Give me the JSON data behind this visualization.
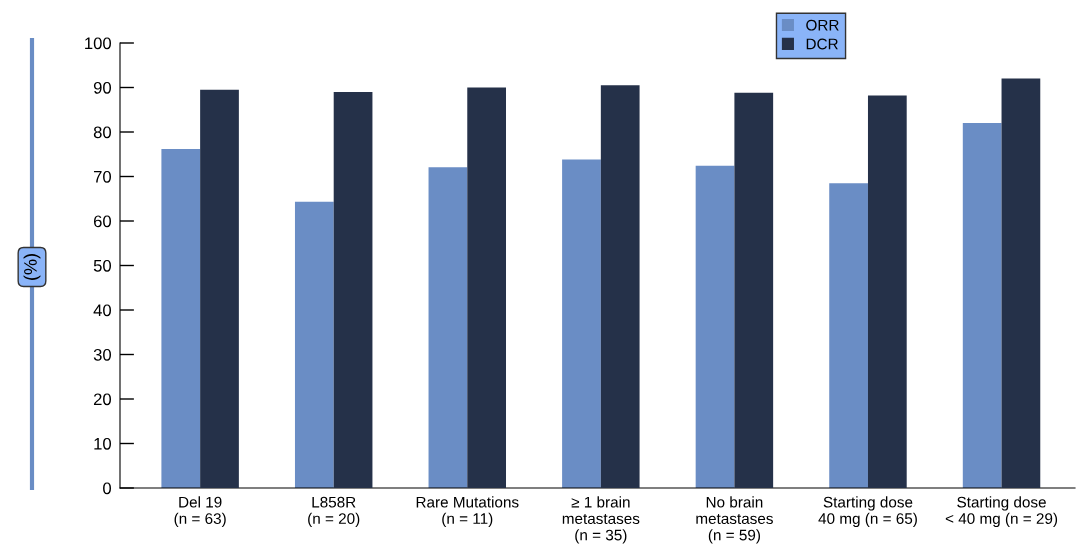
{
  "chart_data": {
    "type": "bar",
    "ylabel": "(%)",
    "categories": [
      "Del 19\n(n = 63)",
      "L858R\n(n = 20)",
      "Rare Mutations\n(n = 11)",
      "≥ 1 brain\nmetastases\n(n = 35)",
      "No brain\nmetastases\n(n = 59)",
      "Starting dose\n40 mg (n = 65)",
      "Starting dose\n< 40 mg (n = 29)"
    ],
    "series": [
      {
        "name": "ORR",
        "color": "#6a8dc5",
        "values": [
          76.2,
          64.3,
          72.1,
          73.8,
          72.4,
          68.5,
          82.0
        ]
      },
      {
        "name": "DCR",
        "color": "#253149",
        "values": [
          89.5,
          89.0,
          90.0,
          90.5,
          88.8,
          88.2,
          92.0
        ]
      }
    ],
    "ylim": [
      0,
      100
    ],
    "yticks": [
      0,
      10,
      20,
      30,
      40,
      50,
      60,
      70,
      80,
      90,
      100
    ],
    "grid": false,
    "legend": "top right"
  }
}
